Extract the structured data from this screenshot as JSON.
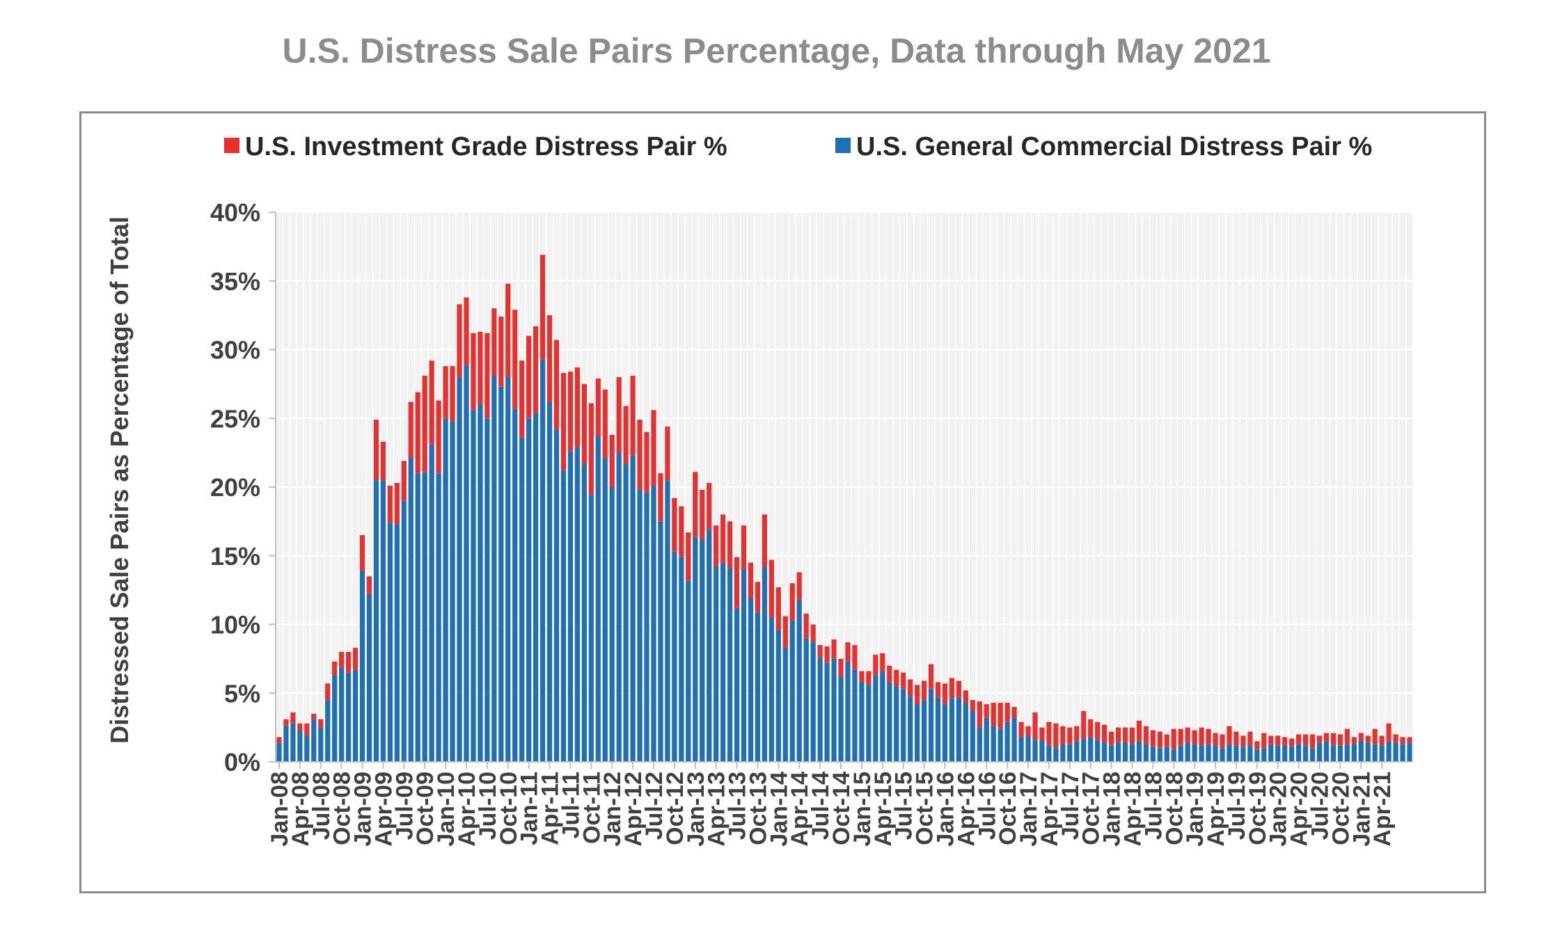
{
  "title": "U.S. Distress Sale Pairs Percentage, Data through May 2021",
  "chart_data": {
    "type": "bar",
    "stacked": true,
    "title": "U.S. Distress Sale Pairs Percentage, Data through May 2021",
    "xlabel": "",
    "ylabel": "Distressed Sale Pairs as Percentage of Total",
    "ylim": [
      0,
      40
    ],
    "y_ticks": [
      "0%",
      "5%",
      "10%",
      "15%",
      "20%",
      "25%",
      "30%",
      "35%",
      "40%"
    ],
    "grid": true,
    "legend_position": "top",
    "x_tick_labels": [
      "Jan-08",
      "Apr-08",
      "Jul-08",
      "Oct-08",
      "Jan-09",
      "Apr-09",
      "Jul-09",
      "Oct-09",
      "Jan-10",
      "Apr-10",
      "Jul-10",
      "Oct-10",
      "Jan-11",
      "Apr-11",
      "Jul-11",
      "Oct-11",
      "Jan-12",
      "Apr-12",
      "Jul-12",
      "Oct-12",
      "Jan-13",
      "Apr-13",
      "Jul-13",
      "Oct-13",
      "Jan-14",
      "Apr-14",
      "Jul-14",
      "Oct-14",
      "Jan-15",
      "Apr-15",
      "Jul-15",
      "Oct-15",
      "Jan-16",
      "Apr-16",
      "Jul-16",
      "Oct-16",
      "Jan-17",
      "Apr-17",
      "Jul-17",
      "Oct-17",
      "Jan-18",
      "Apr-18",
      "Jul-18",
      "Oct-18",
      "Jan-19",
      "Apr-19",
      "Jul-19",
      "Oct-19",
      "Jan-20",
      "Apr-20",
      "Jul-20",
      "Oct-20",
      "Jan-21",
      "Apr-21"
    ],
    "x_start": "Jan-08",
    "x_end": "May-21",
    "series": [
      {
        "name": "U.S. General Commercial Distress Pair %",
        "color": "#1f6fb4",
        "values": [
          1.4,
          2.6,
          2.8,
          2.3,
          1.9,
          3.1,
          2.5,
          4.5,
          6.3,
          6.9,
          6.5,
          6.7,
          13.9,
          12.2,
          20.5,
          20.5,
          17.4,
          17.3,
          19.0,
          22.1,
          21.0,
          21.1,
          23.1,
          21.0,
          25.0,
          24.8,
          28.0,
          28.9,
          25.6,
          26.0,
          25.0,
          28.1,
          27.3,
          28.0,
          25.7,
          23.6,
          25.0,
          25.4,
          29.3,
          26.2,
          24.2,
          21.2,
          22.6,
          22.9,
          21.7,
          19.4,
          23.7,
          22.1,
          20.0,
          22.5,
          21.7,
          22.3,
          19.8,
          19.6,
          20.1,
          17.5,
          20.5,
          15.3,
          14.9,
          13.2,
          16.4,
          16.2,
          16.9,
          14.2,
          14.5,
          14.1,
          11.2,
          14.0,
          11.9,
          10.9,
          14.2,
          10.5,
          9.6,
          8.3,
          10.3,
          11.8,
          9.0,
          8.7,
          7.6,
          7.2,
          7.5,
          6.2,
          7.3,
          6.7,
          5.8,
          5.6,
          6.3,
          6.6,
          5.8,
          5.5,
          5.3,
          4.8,
          4.2,
          4.5,
          5.3,
          4.7,
          4.2,
          4.6,
          4.7,
          4.3,
          3.7,
          2.5,
          3.2,
          2.6,
          2.4,
          2.9,
          3.2,
          1.8,
          1.9,
          1.6,
          1.6,
          1.2,
          1.0,
          1.3,
          1.3,
          1.5,
          1.7,
          1.8,
          1.6,
          1.4,
          1.2,
          1.4,
          1.4,
          1.3,
          1.5,
          1.3,
          1.1,
          1.0,
          1.1,
          0.9,
          1.2,
          1.4,
          1.3,
          1.2,
          1.3,
          1.2,
          1.0,
          1.3,
          1.2,
          1.1,
          1.2,
          0.9,
          1.0,
          1.3,
          1.2,
          1.2,
          1.1,
          1.3,
          1.2,
          1.0,
          1.4,
          1.5,
          1.2,
          1.2,
          1.3,
          1.3,
          1.6,
          1.4,
          1.3,
          1.2,
          1.5,
          1.4,
          1.3,
          1.4
        ],
        "note_values_hidden": false
      },
      {
        "name": "U.S. Investment Grade Distress Pair %",
        "color": "#e8302e",
        "values": [
          0.4,
          0.5,
          0.8,
          0.5,
          0.9,
          0.4,
          0.6,
          1.2,
          1.0,
          1.1,
          1.5,
          1.6,
          2.6,
          1.3,
          4.4,
          2.8,
          2.7,
          3.0,
          2.9,
          4.1,
          5.9,
          7.0,
          6.1,
          5.3,
          3.8,
          4.0,
          5.3,
          4.9,
          5.6,
          5.3,
          6.2,
          4.9,
          5.1,
          6.8,
          7.2,
          5.6,
          6.0,
          6.3,
          7.6,
          6.3,
          6.5,
          7.1,
          5.8,
          5.8,
          5.8,
          6.7,
          4.2,
          5.0,
          3.8,
          5.5,
          4.2,
          5.8,
          5.1,
          4.4,
          5.5,
          3.5,
          3.9,
          3.9,
          3.7,
          3.5,
          4.7,
          3.6,
          3.4,
          3.0,
          3.5,
          3.4,
          3.7,
          3.2,
          2.6,
          2.2,
          3.8,
          4.2,
          3.1,
          2.3,
          2.7,
          2.0,
          1.8,
          1.3,
          0.9,
          1.2,
          1.4,
          1.3,
          1.4,
          1.8,
          0.8,
          1.0,
          1.5,
          1.3,
          1.2,
          1.2,
          1.2,
          1.2,
          1.4,
          1.4,
          1.8,
          1.1,
          1.5,
          1.5,
          1.2,
          0.9,
          0.8,
          1.9,
          1.0,
          1.7,
          1.9,
          1.4,
          0.8,
          1.1,
          0.7,
          2.0,
          0.9,
          1.7,
          1.8,
          1.3,
          1.2,
          1.1,
          2.0,
          1.3,
          1.3,
          1.3,
          1.0,
          1.1,
          1.1,
          1.2,
          1.5,
          1.3,
          1.2,
          1.2,
          0.9,
          1.5,
          1.2,
          1.1,
          1.0,
          1.3,
          1.1,
          0.9,
          1.0,
          1.3,
          1.0,
          0.8,
          1.0,
          0.6,
          1.1,
          0.6,
          0.7,
          0.6,
          0.6,
          0.7,
          0.8,
          1.0,
          0.5,
          0.6,
          0.9,
          0.8,
          1.1,
          0.5,
          0.5,
          0.5,
          1.1,
          0.7,
          1.3,
          0.6,
          0.5,
          0.4
        ]
      }
    ],
    "legend": [
      "U.S. Investment Grade Distress Pair %",
      "U.S. General Commercial Distress Pair %"
    ]
  },
  "colors": {
    "investment_grade": "#e8302e",
    "general_commercial": "#1f6fb4",
    "plot_background": "#f2f2f2",
    "title": "#8c8c8c"
  }
}
